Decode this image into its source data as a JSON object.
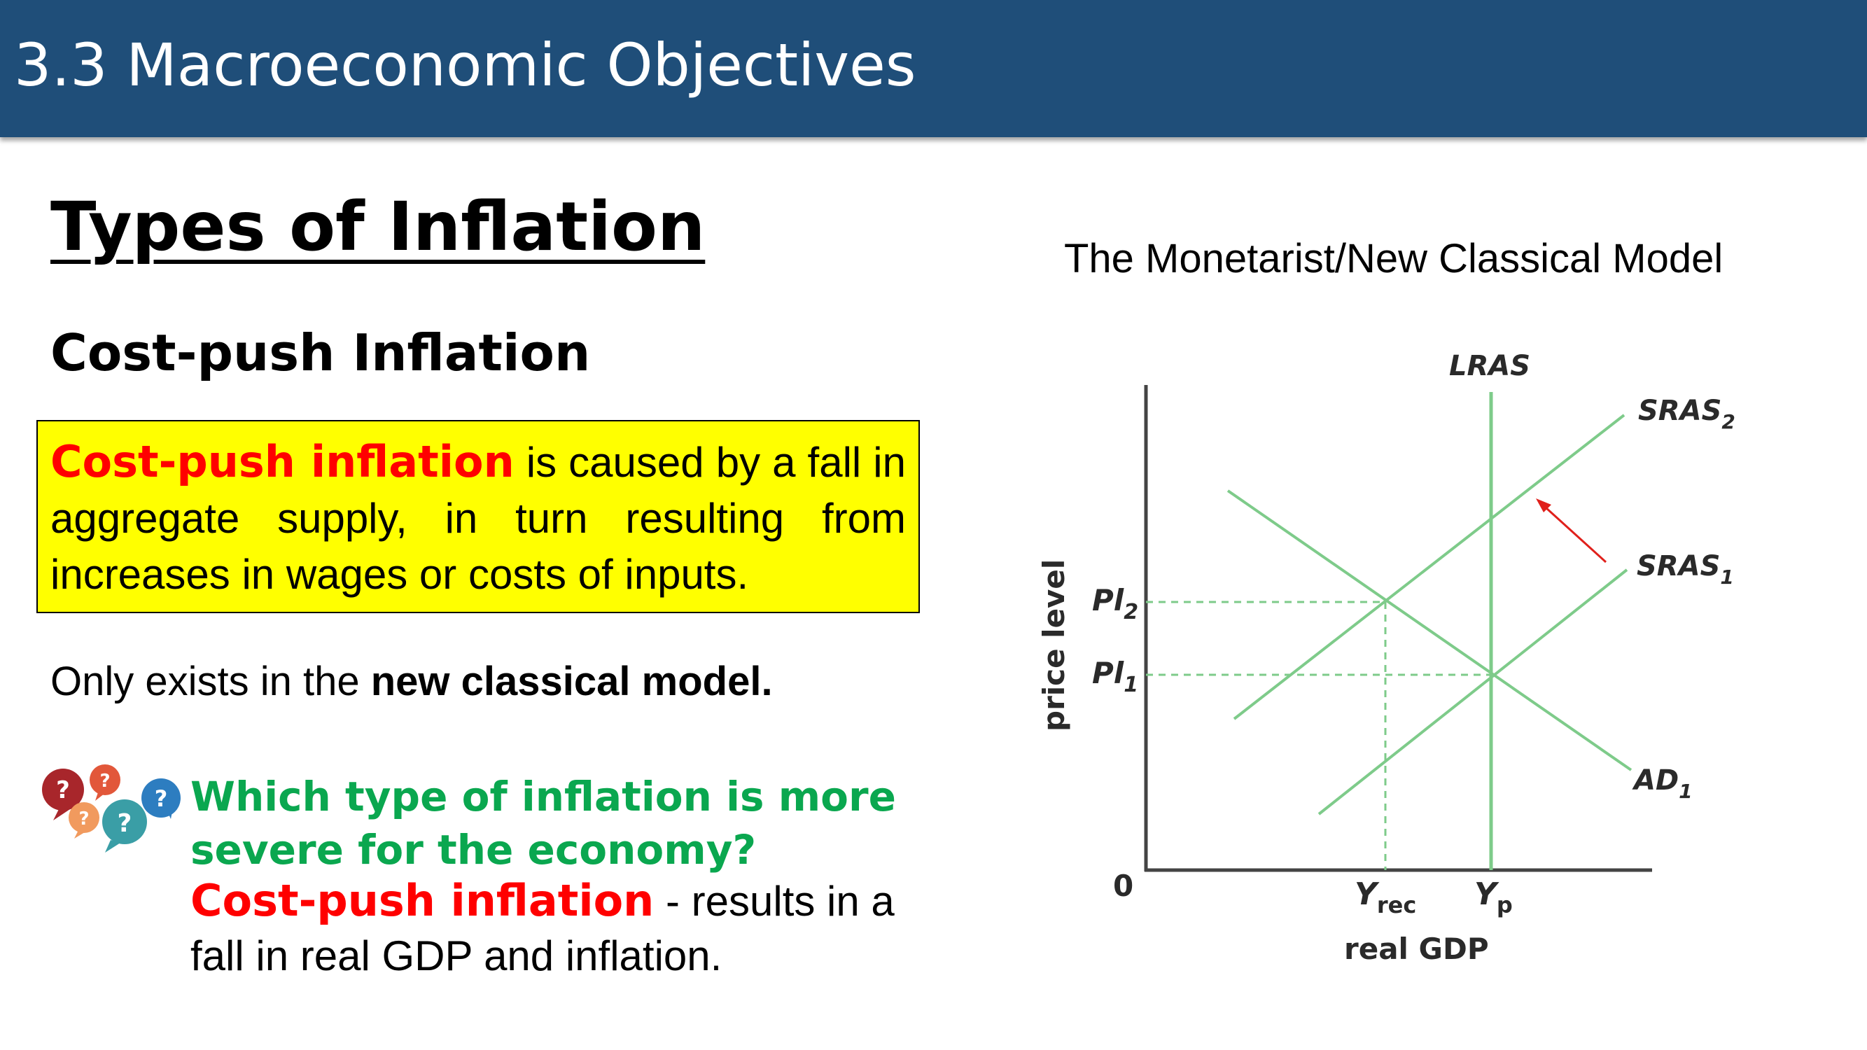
{
  "header": {
    "title": "3.3 Macroeconomic Objectives"
  },
  "section_title": "Types of Inflation",
  "subtitle": "Cost-push Inflation",
  "definition": {
    "term": "Cost-push inflation",
    "text": " is caused by a fall in aggregate supply, in turn resulting from increases in wages or costs of inputs."
  },
  "note": {
    "prefix": "Only exists in the ",
    "bold": "new classical model."
  },
  "question": {
    "text": "Which type of inflation is more severe for the economy?"
  },
  "answer": {
    "term": "Cost-push inflation",
    "text": " - results in a fall in real GDP and inflation."
  },
  "icons": {
    "question_bubbles": "question-bubbles-icon"
  },
  "chart_data": {
    "type": "line",
    "title": "The Monetarist/New Classical Model",
    "xlabel": "real GDP",
    "ylabel": "price level",
    "origin_label": "0",
    "x_ticks": [
      "Y",
      "rec",
      "Y",
      "p"
    ],
    "y_ticks": [
      "Pl",
      "2",
      "Pl",
      "1"
    ],
    "curves": {
      "lras": "LRAS",
      "sras1": [
        "SRAS",
        "1"
      ],
      "sras2": [
        "SRAS",
        "2"
      ],
      "ad1": [
        "AD",
        "1"
      ]
    },
    "shift": {
      "from": "SRAS1",
      "to": "SRAS2",
      "direction": "left"
    },
    "colors": {
      "curves": "#7ecb8a",
      "arrow": "#e0201b",
      "header": "#1f4e79",
      "box": "#ffff00",
      "question": "#0aa74f",
      "term": "#ff0000"
    }
  }
}
